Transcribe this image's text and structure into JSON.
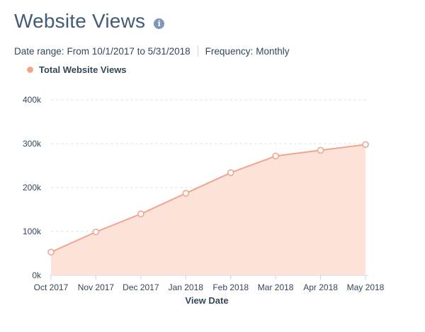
{
  "header": {
    "title": "Website Views",
    "info_icon": "info-icon"
  },
  "meta": {
    "date_range_label": "Date range:",
    "date_range_value": "From 10/1/2017 to 5/31/2018",
    "frequency_label": "Frequency:",
    "frequency_value": "Monthly"
  },
  "colors": {
    "series_line": "#f2a48c",
    "series_fill": "#fde2da",
    "grid": "#dfe3eb",
    "axis": "#cbd6e2"
  },
  "chart_data": {
    "type": "area",
    "title": "",
    "xlabel": "View Date",
    "ylabel": "",
    "categories": [
      "Oct 2017",
      "Nov 2017",
      "Dec 2017",
      "Jan 2018",
      "Feb 2018",
      "Mar 2018",
      "Apr 2018",
      "May 2018"
    ],
    "series": [
      {
        "name": "Total Website Views",
        "values": [
          53000,
          99000,
          140000,
          187000,
          234000,
          272000,
          285000,
          298000
        ]
      }
    ],
    "ylim": [
      0,
      400000
    ],
    "yticks": [
      0,
      100000,
      200000,
      300000,
      400000
    ],
    "ytick_labels": [
      "0k",
      "100k",
      "200k",
      "300k",
      "400k"
    ],
    "grid": true,
    "legend_position": "top-left"
  }
}
